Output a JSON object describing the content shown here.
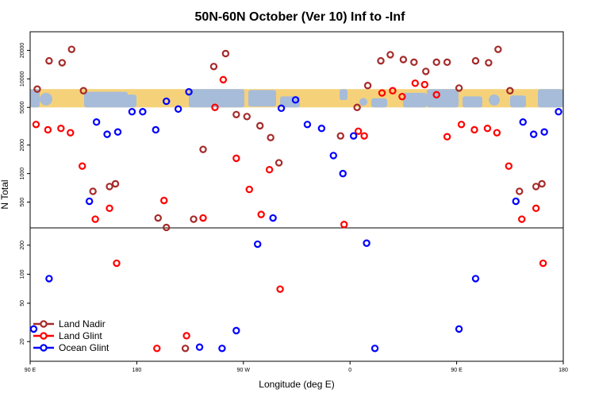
{
  "chart_data": {
    "type": "scatter",
    "title": "50N-60N October (Ver 10)   Inf to -Inf",
    "xlabel": "Longitude (deg E)",
    "ylabel": "N Total",
    "x_ticks": [
      {
        "value": 90,
        "label": "90 E"
      },
      {
        "value": 180,
        "label": "180"
      },
      {
        "value": 270,
        "label": "90 W"
      },
      {
        "value": 360,
        "label": "0"
      },
      {
        "value": 450,
        "label": "90 E"
      },
      {
        "value": 540,
        "label": "180"
      }
    ],
    "xlim": [
      90,
      540
    ],
    "upper_panel": {
      "scale": "log",
      "ylim": [
        300,
        28000
      ],
      "y_ticks": [
        500,
        1000,
        2000,
        5000,
        10000,
        20000
      ],
      "map_band": [
        5000,
        7800
      ]
    },
    "lower_panel": {
      "scale": "log",
      "ylim": [
        14,
        270
      ],
      "y_ticks": [
        20,
        50,
        100,
        200
      ]
    },
    "colors": {
      "land_nadir": "#a52a2a",
      "land_glint": "#ff0000",
      "ocean_glint": "#0000ff",
      "map_ocean": "#a7bcd9",
      "map_land": "#f5d27a"
    },
    "legend": [
      {
        "name": "Land Nadir",
        "color": "#a52a2a"
      },
      {
        "name": "Land Glint",
        "color": "#ff0000"
      },
      {
        "name": "Ocean Glint",
        "color": "#0000ff"
      }
    ],
    "series": [
      {
        "name": "Land Nadir",
        "color": "#a52a2a",
        "points": [
          {
            "x": 96,
            "y": 7800,
            "panel": "upper"
          },
          {
            "x": 106,
            "y": 15500,
            "panel": "upper"
          },
          {
            "x": 117,
            "y": 14800,
            "panel": "upper"
          },
          {
            "x": 125,
            "y": 20500,
            "panel": "upper"
          },
          {
            "x": 135,
            "y": 7500,
            "panel": "upper"
          },
          {
            "x": 143,
            "y": 650,
            "panel": "upper"
          },
          {
            "x": 157,
            "y": 730,
            "panel": "upper"
          },
          {
            "x": 162,
            "y": 780,
            "panel": "upper"
          },
          {
            "x": 198,
            "y": 340,
            "panel": "upper"
          },
          {
            "x": 205,
            "y": 270,
            "panel": "upper"
          },
          {
            "x": 221,
            "y": 17,
            "panel": "lower"
          },
          {
            "x": 228,
            "y": 330,
            "panel": "upper"
          },
          {
            "x": 236,
            "y": 1800,
            "panel": "upper"
          },
          {
            "x": 245,
            "y": 13500,
            "panel": "upper"
          },
          {
            "x": 255,
            "y": 18500,
            "panel": "upper"
          },
          {
            "x": 264,
            "y": 4200,
            "panel": "upper"
          },
          {
            "x": 273,
            "y": 4000,
            "panel": "upper"
          },
          {
            "x": 284,
            "y": 3200,
            "panel": "upper"
          },
          {
            "x": 293,
            "y": 2400,
            "panel": "upper"
          },
          {
            "x": 300,
            "y": 1300,
            "panel": "upper"
          },
          {
            "x": 352,
            "y": 2500,
            "panel": "upper"
          },
          {
            "x": 366,
            "y": 5000,
            "panel": "upper"
          },
          {
            "x": 375,
            "y": 8500,
            "panel": "upper"
          },
          {
            "x": 386,
            "y": 15500,
            "panel": "upper"
          },
          {
            "x": 394,
            "y": 18000,
            "panel": "upper"
          },
          {
            "x": 405,
            "y": 16000,
            "panel": "upper"
          },
          {
            "x": 414,
            "y": 15000,
            "panel": "upper"
          },
          {
            "x": 424,
            "y": 12000,
            "panel": "upper"
          },
          {
            "x": 433,
            "y": 15000,
            "panel": "upper"
          },
          {
            "x": 442,
            "y": 15000,
            "panel": "upper"
          },
          {
            "x": 452,
            "y": 8000,
            "panel": "upper"
          },
          {
            "x": 466,
            "y": 15500,
            "panel": "upper"
          },
          {
            "x": 477,
            "y": 14800,
            "panel": "upper"
          },
          {
            "x": 485,
            "y": 20500,
            "panel": "upper"
          },
          {
            "x": 495,
            "y": 7500,
            "panel": "upper"
          },
          {
            "x": 503,
            "y": 650,
            "panel": "upper"
          },
          {
            "x": 517,
            "y": 730,
            "panel": "upper"
          },
          {
            "x": 522,
            "y": 780,
            "panel": "upper"
          }
        ]
      },
      {
        "name": "Land Glint",
        "color": "#ff0000",
        "points": [
          {
            "x": 95,
            "y": 3300,
            "panel": "upper"
          },
          {
            "x": 105,
            "y": 2900,
            "panel": "upper"
          },
          {
            "x": 116,
            "y": 3000,
            "panel": "upper"
          },
          {
            "x": 124,
            "y": 2700,
            "panel": "upper"
          },
          {
            "x": 134,
            "y": 1200,
            "panel": "upper"
          },
          {
            "x": 145,
            "y": 330,
            "panel": "upper"
          },
          {
            "x": 157,
            "y": 430,
            "panel": "upper"
          },
          {
            "x": 163,
            "y": 130,
            "panel": "lower"
          },
          {
            "x": 197,
            "y": 17,
            "panel": "lower"
          },
          {
            "x": 203,
            "y": 520,
            "panel": "upper"
          },
          {
            "x": 222,
            "y": 23,
            "panel": "lower"
          },
          {
            "x": 236,
            "y": 340,
            "panel": "upper"
          },
          {
            "x": 246,
            "y": 5000,
            "panel": "upper"
          },
          {
            "x": 253,
            "y": 9800,
            "panel": "upper"
          },
          {
            "x": 264,
            "y": 1450,
            "panel": "upper"
          },
          {
            "x": 275,
            "y": 680,
            "panel": "upper"
          },
          {
            "x": 285,
            "y": 370,
            "panel": "upper"
          },
          {
            "x": 292,
            "y": 1100,
            "panel": "upper"
          },
          {
            "x": 301,
            "y": 70,
            "panel": "lower"
          },
          {
            "x": 355,
            "y": 290,
            "panel": "upper"
          },
          {
            "x": 367,
            "y": 2800,
            "panel": "upper"
          },
          {
            "x": 372,
            "y": 2500,
            "panel": "upper"
          },
          {
            "x": 387,
            "y": 7100,
            "panel": "upper"
          },
          {
            "x": 396,
            "y": 7500,
            "panel": "upper"
          },
          {
            "x": 404,
            "y": 6500,
            "panel": "upper"
          },
          {
            "x": 415,
            "y": 9000,
            "panel": "upper"
          },
          {
            "x": 423,
            "y": 8700,
            "panel": "upper"
          },
          {
            "x": 433,
            "y": 6800,
            "panel": "upper"
          },
          {
            "x": 442,
            "y": 2450,
            "panel": "upper"
          },
          {
            "x": 454,
            "y": 3300,
            "panel": "upper"
          },
          {
            "x": 465,
            "y": 2900,
            "panel": "upper"
          },
          {
            "x": 476,
            "y": 3000,
            "panel": "upper"
          },
          {
            "x": 484,
            "y": 2700,
            "panel": "upper"
          },
          {
            "x": 494,
            "y": 1200,
            "panel": "upper"
          },
          {
            "x": 505,
            "y": 330,
            "panel": "upper"
          },
          {
            "x": 517,
            "y": 430,
            "panel": "upper"
          },
          {
            "x": 523,
            "y": 130,
            "panel": "lower"
          }
        ]
      },
      {
        "name": "Ocean Glint",
        "color": "#0000ff",
        "points": [
          {
            "x": 93,
            "y": 27,
            "panel": "lower"
          },
          {
            "x": 106,
            "y": 90,
            "panel": "lower"
          },
          {
            "x": 140,
            "y": 510,
            "panel": "upper"
          },
          {
            "x": 146,
            "y": 3500,
            "panel": "upper"
          },
          {
            "x": 155,
            "y": 2600,
            "panel": "upper"
          },
          {
            "x": 164,
            "y": 2750,
            "panel": "upper"
          },
          {
            "x": 176,
            "y": 4500,
            "panel": "upper"
          },
          {
            "x": 185,
            "y": 4500,
            "panel": "upper"
          },
          {
            "x": 196,
            "y": 2900,
            "panel": "upper"
          },
          {
            "x": 205,
            "y": 5800,
            "panel": "upper"
          },
          {
            "x": 215,
            "y": 4800,
            "panel": "upper"
          },
          {
            "x": 224,
            "y": 7300,
            "panel": "upper"
          },
          {
            "x": 233,
            "y": 17.5,
            "panel": "lower"
          },
          {
            "x": 252,
            "y": 17,
            "panel": "lower"
          },
          {
            "x": 264,
            "y": 26,
            "panel": "lower"
          },
          {
            "x": 282,
            "y": 205,
            "panel": "lower"
          },
          {
            "x": 295,
            "y": 340,
            "panel": "upper"
          },
          {
            "x": 302,
            "y": 4900,
            "panel": "upper"
          },
          {
            "x": 314,
            "y": 6000,
            "panel": "upper"
          },
          {
            "x": 324,
            "y": 3300,
            "panel": "upper"
          },
          {
            "x": 336,
            "y": 3000,
            "panel": "upper"
          },
          {
            "x": 346,
            "y": 1550,
            "panel": "upper"
          },
          {
            "x": 354,
            "y": 1000,
            "panel": "upper"
          },
          {
            "x": 363,
            "y": 2500,
            "panel": "upper"
          },
          {
            "x": 374,
            "y": 210,
            "panel": "lower"
          },
          {
            "x": 381,
            "y": 17,
            "panel": "lower"
          },
          {
            "x": 452,
            "y": 27,
            "panel": "lower"
          },
          {
            "x": 466,
            "y": 90,
            "panel": "lower"
          },
          {
            "x": 500,
            "y": 510,
            "panel": "upper"
          },
          {
            "x": 506,
            "y": 3500,
            "panel": "upper"
          },
          {
            "x": 515,
            "y": 2600,
            "panel": "upper"
          },
          {
            "x": 524,
            "y": 2750,
            "panel": "upper"
          },
          {
            "x": 536,
            "y": 4500,
            "panel": "upper"
          }
        ]
      }
    ]
  }
}
